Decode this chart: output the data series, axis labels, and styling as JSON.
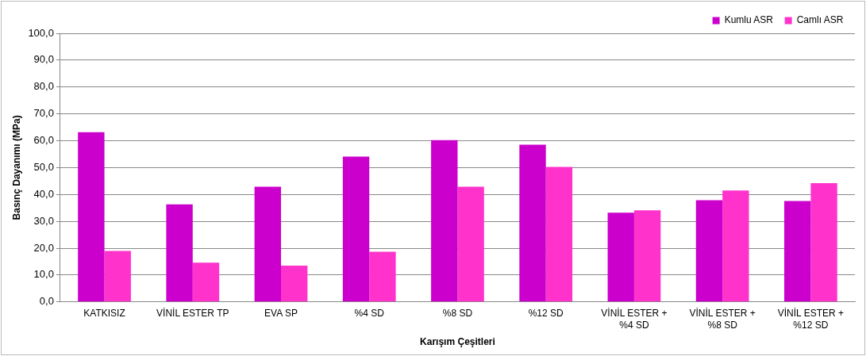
{
  "chart_data": {
    "type": "bar",
    "xlabel": "Karışım Çeşitleri",
    "ylabel": "Basınç Dayanımı (MPa)",
    "categories": [
      "KATKISIZ",
      "VİNİL ESTER TP",
      "EVA SP",
      "%4 SD",
      "%8 SD",
      "%12 SD",
      "VİNİL ESTER +\n%4 SD",
      "VİNİL ESTER +\n%8 SD",
      "VİNİL ESTER +\n%12 SD"
    ],
    "series": [
      {
        "name": "Kumlu ASR",
        "color": "#cc00cc",
        "values": [
          63.2,
          36.3,
          42.9,
          54.1,
          60.2,
          58.5,
          33.2,
          37.9,
          37.6
        ]
      },
      {
        "name": "Camlı ASR",
        "color": "#ff33cc",
        "values": [
          19.0,
          14.6,
          13.5,
          18.7,
          42.9,
          50.3,
          34.1,
          41.5,
          44.2
        ]
      }
    ],
    "ylim": [
      0,
      100
    ],
    "yticks": [
      {
        "value": 0,
        "label": "0,0"
      },
      {
        "value": 10,
        "label": "10,0"
      },
      {
        "value": 20,
        "label": "20,0"
      },
      {
        "value": 30,
        "label": "30,0"
      },
      {
        "value": 40,
        "label": "40,0"
      },
      {
        "value": 50,
        "label": "50,0"
      },
      {
        "value": 60,
        "label": "60,0"
      },
      {
        "value": 70,
        "label": "70,0"
      },
      {
        "value": 80,
        "label": "80,0"
      },
      {
        "value": 90,
        "label": "90,0"
      },
      {
        "value": 100,
        "label": "100,0"
      }
    ],
    "grid": "y",
    "legend": "top right"
  }
}
